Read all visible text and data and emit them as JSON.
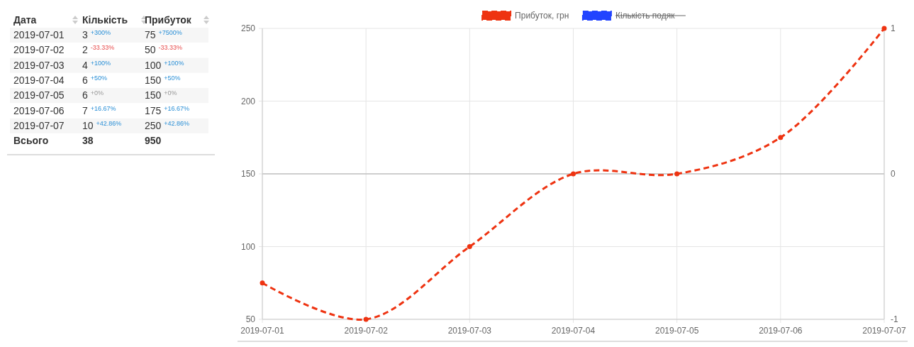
{
  "chart_data": [
    {
      "type": "other",
      "categories": [
        "Дата",
        "Кількість",
        "Прибуток"
      ],
      "y_categories": [
        "2019-07-01",
        "2019-07-02",
        "2019-07-03",
        "2019-07-04",
        "2019-07-05",
        "2019-07-06",
        "2019-07-07",
        "Всього"
      ],
      "cell_labels": [
        [
          "3 $^{+300%}$",
          "75 $^{+7500%}$"
        ],
        [
          "2 $^{-33.33%}$",
          "50 $^{-33.33%}$"
        ],
        [
          "4 $^{+100%}$",
          "100 $^{+100%}$"
        ],
        [
          "6 $^{+50%}$",
          "150 $^{+50%}$"
        ],
        [
          "6 $^{+0%}$",
          "150 $^{+0%}$"
        ],
        [
          "7 $^{+16.67%}$",
          "175 $^{+16.67%}$"
        ],
        [
          "10 $^{+42.86%}$",
          "250 $^{+42.86%}$"
        ],
        [
          "38",
          "950"
        ]
      ]
    },
    {
      "type": "line",
      "categories": [
        "2019-07-01",
        "2019-07-02",
        "2019-07-03",
        "2019-07-04",
        "2019-07-05",
        "2019-07-06",
        "2019-07-07"
      ],
      "series": [
        {
          "name": "Прибуток, грн",
          "color": "#ee3311",
          "values": [
            75,
            50,
            100,
            150,
            150,
            175,
            250
          ]
        },
        {
          "name": "Кількість подяк",
          "color": "#2244ff",
          "values": [
            null,
            null,
            null,
            null,
            null,
            null,
            null
          ]
        }
      ],
      "ylim": [
        50,
        250
      ],
      "yticks": [
        50,
        100,
        150,
        200,
        250
      ],
      "y2lim": [
        -1,
        1
      ],
      "y2ticks": [
        -1,
        0,
        1
      ],
      "grid": true,
      "legend": "top",
      "marker": "circle",
      "line_style": "dashed"
    }
  ]
}
